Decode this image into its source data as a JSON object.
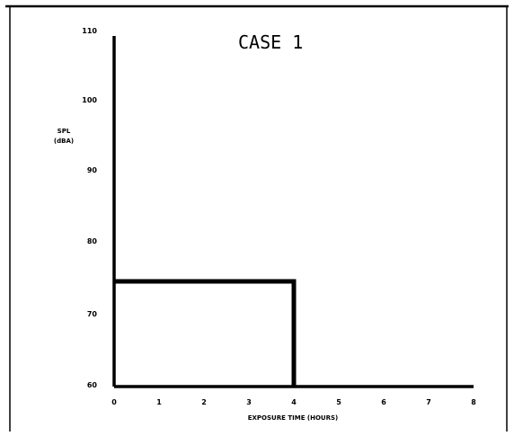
{
  "chart_data": {
    "type": "line",
    "title": "CASE 1",
    "xlabel": "EXPOSURE TIME (HOURS)",
    "ylabel_line1": "SPL",
    "ylabel_line2": "(dBA)",
    "xlim": [
      0,
      8
    ],
    "ylim": [
      60,
      110
    ],
    "x_ticks": [
      "0",
      "1",
      "2",
      "3",
      "4",
      "5",
      "6",
      "7",
      "8"
    ],
    "y_ticks": [
      "110",
      "100",
      "90",
      "80",
      "70",
      "60"
    ],
    "grid": false,
    "series": [
      {
        "points": [
          {
            "x": 0,
            "y": 75
          },
          {
            "x": 4,
            "y": 75
          },
          {
            "x": 4,
            "y": 60
          }
        ]
      }
    ]
  },
  "colors": {
    "ink": "#000000",
    "background": "#ffffff"
  }
}
